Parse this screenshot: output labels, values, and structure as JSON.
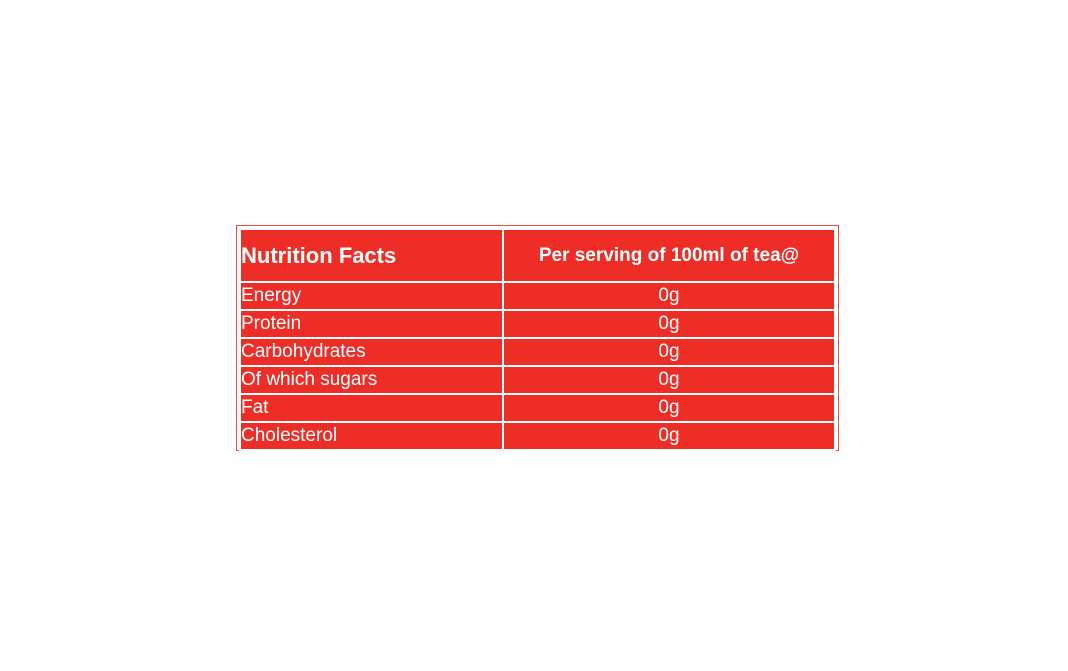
{
  "table": {
    "header": {
      "nutrient_label": "Nutrition Facts",
      "serving_label": "Per serving of 100ml of tea@"
    },
    "rows": [
      {
        "nutrient": "Energy",
        "amount": "0g"
      },
      {
        "nutrient": "Protein",
        "amount": "0g"
      },
      {
        "nutrient": "Carbohydrates",
        "amount": "0g"
      },
      {
        "nutrient": "Of which sugars",
        "amount": "0g"
      },
      {
        "nutrient": "Fat",
        "amount": "0g"
      },
      {
        "nutrient": "Cholesterol",
        "amount": "0g"
      }
    ]
  },
  "colors": {
    "cell_fill": "#ee2d26",
    "text": "#ffffff",
    "frame": "#ef4a44"
  }
}
